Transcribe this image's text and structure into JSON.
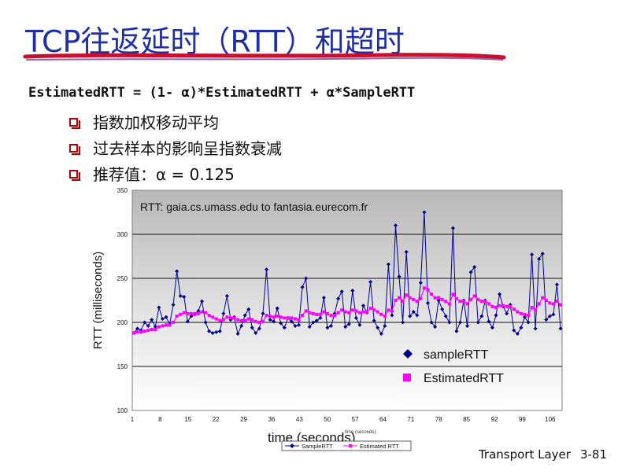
{
  "slide": {
    "title": "TCP往返延时（RTT）和超时",
    "formula": "EstimatedRTT = (1- α)*EstimatedRTT + α*SampleRTT",
    "bullets": [
      "指数加权移动平均",
      "过去样本的影响呈指数衰减",
      "推荐值：α = 0.125"
    ],
    "footer_label": "Transport Layer",
    "page_number": "3-81",
    "accent_color": "#1f2fa8",
    "bullet_color": "#b00000"
  },
  "chart_data": {
    "type": "line",
    "title": "RTT: gaia.cs.umass.edu to fantasia.eurecom.fr",
    "xlabel": "time (seconds)",
    "ylabel": "RTT (milliseconds)",
    "xlabel_overlay": "time (seconds)",
    "ylim": [
      100,
      350
    ],
    "yticks": [
      100,
      150,
      200,
      250,
      300,
      350
    ],
    "xticks": [
      1,
      8,
      15,
      22,
      29,
      36,
      43,
      50,
      57,
      64,
      71,
      78,
      85,
      92,
      99,
      106
    ],
    "xlim": [
      1,
      109
    ],
    "grid": true,
    "legend_placement": "bottom-right",
    "series": [
      {
        "name": "sampleRTT",
        "legend_small": "SampleRTT",
        "color": "#00008b",
        "marker": "diamond",
        "values": [
          188,
          193,
          191,
          200,
          196,
          203,
          195,
          217,
          204,
          206,
          198,
          220,
          258,
          230,
          229,
          201,
          207,
          209,
          213,
          224,
          200,
          190,
          188,
          189,
          190,
          210,
          230,
          203,
          206,
          187,
          196,
          208,
          215,
          194,
          188,
          193,
          210,
          260,
          203,
          201,
          216,
          199,
          194,
          205,
          201,
          196,
          197,
          240,
          250,
          195,
          200,
          202,
          205,
          228,
          194,
          196,
          210,
          227,
          235,
          195,
          198,
          236,
          205,
          197,
          219,
          211,
          246,
          202,
          194,
          187,
          196,
          266,
          208,
          310,
          252,
          200,
          280,
          207,
          212,
          208,
          245,
          325,
          222,
          200,
          195,
          225,
          215,
          207,
          200,
          307,
          190,
          200,
          225,
          196,
          257,
          263,
          200,
          207,
          225,
          201,
          194,
          208,
          232,
          218,
          210,
          220,
          191,
          187,
          194,
          206,
          200,
          277,
          193,
          272,
          278,
          203,
          207,
          209,
          243,
          193
        ]
      },
      {
        "name": "EstimatedRTT",
        "legend_small": "Estimated RTT",
        "color": "#ff00ff",
        "marker": "square",
        "values": [
          188,
          189,
          189,
          190,
          191,
          192,
          192,
          195,
          196,
          197,
          197,
          200,
          207,
          209,
          211,
          210,
          210,
          210,
          210,
          212,
          211,
          208,
          206,
          204,
          202,
          203,
          206,
          205,
          205,
          203,
          202,
          202,
          204,
          203,
          201,
          200,
          201,
          208,
          207,
          206,
          207,
          206,
          205,
          205,
          205,
          204,
          203,
          208,
          213,
          211,
          210,
          209,
          209,
          212,
          210,
          208,
          208,
          211,
          214,
          212,
          211,
          214,
          213,
          211,
          212,
          212,
          216,
          214,
          212,
          209,
          207,
          214,
          213,
          225,
          228,
          224,
          231,
          228,
          226,
          224,
          227,
          239,
          237,
          232,
          228,
          228,
          226,
          224,
          221,
          232,
          227,
          224,
          224,
          221,
          226,
          230,
          226,
          224,
          224,
          221,
          218,
          217,
          219,
          219,
          218,
          218,
          215,
          212,
          210,
          209,
          208,
          217,
          214,
          221,
          228,
          225,
          222,
          221,
          224,
          220
        ]
      }
    ]
  }
}
